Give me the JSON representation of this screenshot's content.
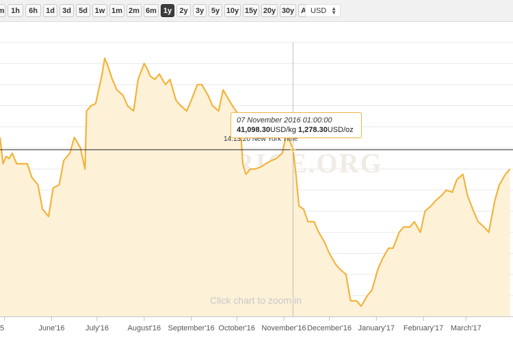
{
  "toolbar": {
    "ranges": [
      "m",
      "1h",
      "6h",
      "1d",
      "3d",
      "5d",
      "1w",
      "1m",
      "2m",
      "6m",
      "1y",
      "2y",
      "3y",
      "5y",
      "10y",
      "15y",
      "20y",
      "30y",
      "All"
    ],
    "active_range": "1y",
    "currency": "USD"
  },
  "watermark": "GOLDPRICE.ORG",
  "zoom_hint": "Click chart to zoom in",
  "crosshair_label": "14:13:20 New York Time",
  "tooltip": {
    "date": "07 November 2016 01:00:00",
    "kg_value": "41,098.30",
    "kg_unit": "USD/kg",
    "oz_value": "1,278.30",
    "oz_unit": "USD/oz"
  },
  "colors": {
    "line": "#f3b33c",
    "fill": "#fdf1d8",
    "active_button": "#3d3d3d"
  },
  "chart_data": {
    "type": "area",
    "series_unit": "USD/oz",
    "x_tick_labels": [
      "5",
      "June'16",
      "July'16",
      "August'16",
      "September'16",
      "October'16",
      "November'16",
      "December'16",
      "January'17",
      "February'17",
      "March'17"
    ],
    "x_tick_dates": [
      "2016-05-01",
      "2016-06-01",
      "2016-07-01",
      "2016-08-01",
      "2016-09-01",
      "2016-10-01",
      "2016-11-01",
      "2016-12-01",
      "2017-01-01",
      "2017-02-01",
      "2017-03-01"
    ],
    "xlim": [
      "2016-04-28",
      "2017-04-01"
    ],
    "ylim": [
      1120,
      1380
    ],
    "grid": "horizontal",
    "crosshair": {
      "date": "2016-11-07",
      "value": 1278.3
    },
    "x": [
      "2016-04-28",
      "2016-04-30",
      "2016-05-02",
      "2016-05-04",
      "2016-05-06",
      "2016-05-09",
      "2016-05-12",
      "2016-05-16",
      "2016-05-19",
      "2016-05-23",
      "2016-05-26",
      "2016-05-30",
      "2016-06-02",
      "2016-06-06",
      "2016-06-09",
      "2016-06-13",
      "2016-06-16",
      "2016-06-20",
      "2016-06-23",
      "2016-06-24",
      "2016-06-27",
      "2016-06-30",
      "2016-07-04",
      "2016-07-06",
      "2016-07-08",
      "2016-07-11",
      "2016-07-14",
      "2016-07-18",
      "2016-07-21",
      "2016-07-25",
      "2016-07-28",
      "2016-08-01",
      "2016-08-03",
      "2016-08-05",
      "2016-08-08",
      "2016-08-11",
      "2016-08-15",
      "2016-08-18",
      "2016-08-22",
      "2016-08-25",
      "2016-08-29",
      "2016-09-01",
      "2016-09-05",
      "2016-09-08",
      "2016-09-12",
      "2016-09-15",
      "2016-09-19",
      "2016-09-22",
      "2016-09-26",
      "2016-09-29",
      "2016-10-03",
      "2016-10-05",
      "2016-10-07",
      "2016-10-10",
      "2016-10-13",
      "2016-10-17",
      "2016-10-20",
      "2016-10-24",
      "2016-10-27",
      "2016-10-31",
      "2016-11-03",
      "2016-11-07",
      "2016-11-09",
      "2016-11-11",
      "2016-11-14",
      "2016-11-17",
      "2016-11-21",
      "2016-11-24",
      "2016-11-28",
      "2016-12-01",
      "2016-12-05",
      "2016-12-08",
      "2016-12-12",
      "2016-12-15",
      "2016-12-19",
      "2016-12-22",
      "2016-12-26",
      "2016-12-29",
      "2017-01-02",
      "2017-01-05",
      "2017-01-09",
      "2017-01-12",
      "2017-01-16",
      "2017-01-19",
      "2017-01-23",
      "2017-01-26",
      "2017-01-30",
      "2017-02-02",
      "2017-02-06",
      "2017-02-09",
      "2017-02-13",
      "2017-02-16",
      "2017-02-20",
      "2017-02-23",
      "2017-02-27",
      "2017-03-02",
      "2017-03-06",
      "2017-03-09",
      "2017-03-13",
      "2017-03-16",
      "2017-03-20",
      "2017-03-23",
      "2017-03-27",
      "2017-03-30"
    ],
    "values": [
      1290,
      1265,
      1272,
      1270,
      1275,
      1265,
      1265,
      1265,
      1252,
      1245,
      1222,
      1215,
      1242,
      1245,
      1268,
      1275,
      1290,
      1280,
      1260,
      1315,
      1320,
      1322,
      1348,
      1365,
      1358,
      1345,
      1335,
      1330,
      1320,
      1315,
      1345,
      1360,
      1355,
      1348,
      1345,
      1350,
      1340,
      1345,
      1325,
      1320,
      1315,
      1325,
      1340,
      1340,
      1330,
      1320,
      1315,
      1335,
      1325,
      1318,
      1310,
      1265,
      1255,
      1260,
      1260,
      1262,
      1265,
      1268,
      1270,
      1275,
      1295,
      1278,
      1255,
      1225,
      1222,
      1210,
      1210,
      1200,
      1190,
      1180,
      1170,
      1165,
      1160,
      1135,
      1135,
      1130,
      1140,
      1145,
      1165,
      1175,
      1185,
      1185,
      1200,
      1205,
      1205,
      1210,
      1200,
      1220,
      1225,
      1230,
      1235,
      1240,
      1238,
      1250,
      1255,
      1235,
      1220,
      1210,
      1205,
      1200,
      1230,
      1245,
      1255,
      1260
    ]
  }
}
